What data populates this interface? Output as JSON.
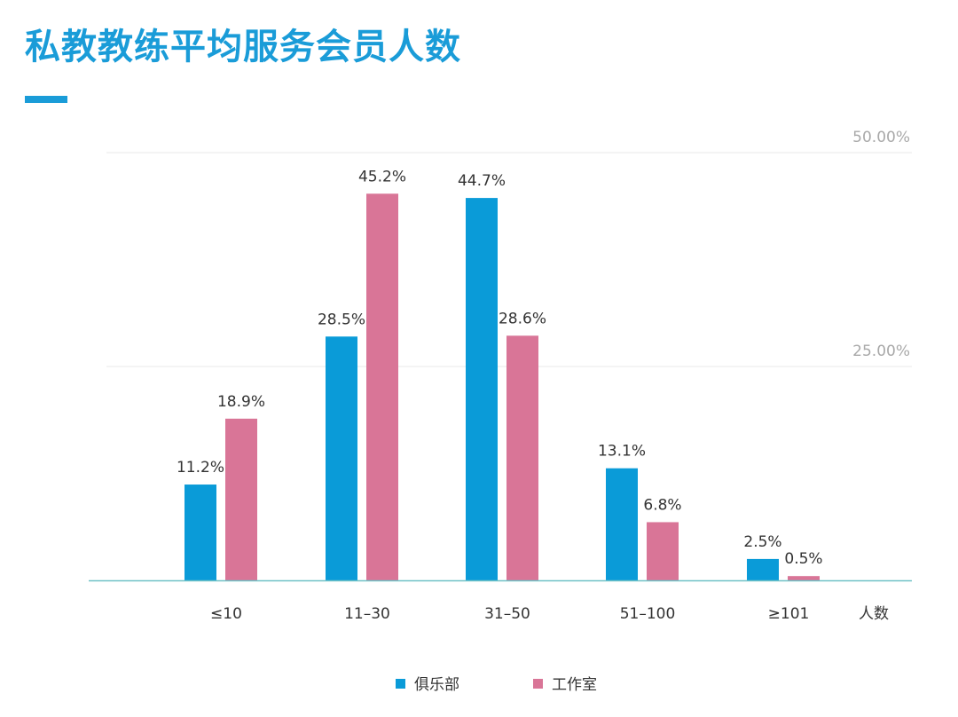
{
  "header": {
    "title": "私教教练平均服务会员人数"
  },
  "colors": {
    "title": "#1a9cd8",
    "club": "#0a9bd8",
    "studio": "#d97597",
    "grid": "#e8e8e8",
    "baseline": "#6fc1c6"
  },
  "chart_data": {
    "type": "bar",
    "title": "私教教练平均服务会员人数",
    "xlabel": "人数",
    "ylabel": "",
    "ylim": [
      0,
      50
    ],
    "yticks": [
      {
        "value": 50,
        "label": "50.00%"
      },
      {
        "value": 25,
        "label": "25.00%"
      }
    ],
    "grid": true,
    "legend_position": "bottom-center",
    "categories": [
      "≤10",
      "11–30",
      "31–50",
      "51–100",
      "≥101"
    ],
    "series": [
      {
        "name": "俱乐部",
        "values": [
          11.2,
          28.5,
          44.7,
          13.1,
          2.5
        ],
        "labels": [
          "11.2%",
          "28.5%",
          "44.7%",
          "13.1%",
          "2.5%"
        ]
      },
      {
        "name": "工作室",
        "values": [
          18.9,
          45.2,
          28.6,
          6.8,
          0.5
        ],
        "labels": [
          "18.9%",
          "45.2%",
          "28.6%",
          "6.8%",
          "0.5%"
        ]
      }
    ]
  }
}
